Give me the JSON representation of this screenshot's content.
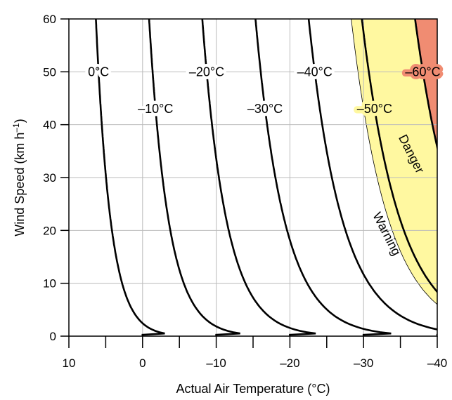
{
  "chart_data": {
    "type": "line",
    "title": "",
    "xlabel": "Actual Air Temperature (°C)",
    "ylabel_main": "Wind Speed (km h",
    "ylabel_sup": "–1",
    "ylabel_close": ")",
    "xlim": [
      10,
      -40
    ],
    "ylim": [
      0,
      60
    ],
    "x_ticks": [
      10,
      0,
      -10,
      -20,
      -30,
      -40
    ],
    "x_tick_labels": [
      "10",
      "0",
      "–10",
      "–20",
      "–30",
      "–40"
    ],
    "x_minor_ticks": [
      5,
      -5,
      -15,
      -25,
      -35
    ],
    "y_ticks": [
      0,
      10,
      20,
      30,
      40,
      50,
      60
    ],
    "y_tick_labels": [
      "0",
      "10",
      "20",
      "30",
      "40",
      "50",
      "60"
    ],
    "grid": true,
    "series": [
      {
        "name": "0°C",
        "wct": 0
      },
      {
        "name": "–10°C",
        "wct": -10
      },
      {
        "name": "–20°C",
        "wct": -20
      },
      {
        "name": "–30°C",
        "wct": -30
      },
      {
        "name": "–40°C",
        "wct": -40
      },
      {
        "name": "–50°C",
        "wct": -50
      },
      {
        "name": "–60°C",
        "wct": -60
      }
    ],
    "zones": [
      {
        "name": "Warning",
        "color": "#fff8a0",
        "wct_threshold": -48
      },
      {
        "name": "Danger",
        "color": "#f08c72",
        "wct_threshold": -60
      }
    ]
  }
}
